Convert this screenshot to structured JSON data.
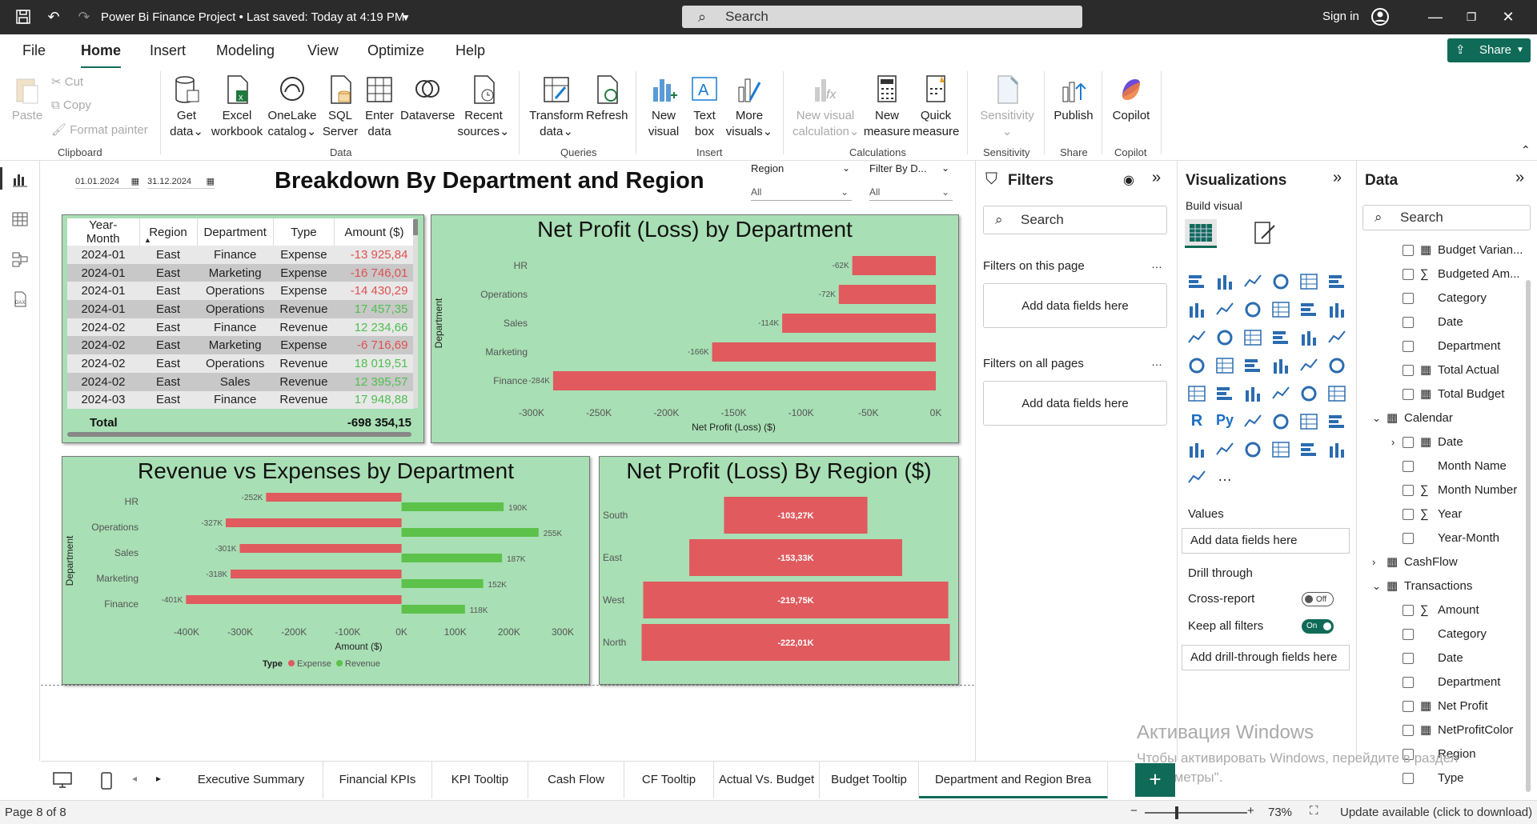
{
  "app": {
    "title": "Power Bi Finance Project • Last saved: Today at 4:19 PM",
    "search_placeholder": "Search",
    "signin": "Sign in",
    "share": "Share"
  },
  "menu": [
    "File",
    "Home",
    "Insert",
    "Modeling",
    "View",
    "Optimize",
    "Help"
  ],
  "ribbon": {
    "clipboard": {
      "paste": "Paste",
      "cut": "Cut",
      "copy": "Copy",
      "format_painter": "Format painter",
      "label": "Clipboard"
    },
    "data": {
      "get_data": [
        "Get",
        "data"
      ],
      "excel": [
        "Excel",
        "workbook"
      ],
      "onelake": [
        "OneLake",
        "catalog"
      ],
      "sql": [
        "SQL",
        "Server"
      ],
      "enter": [
        "Enter",
        "data"
      ],
      "dataverse": "Dataverse",
      "recent": [
        "Recent",
        "sources"
      ],
      "label": "Data"
    },
    "queries": {
      "transform": [
        "Transform",
        "data"
      ],
      "refresh": "Refresh",
      "label": "Queries"
    },
    "insert": {
      "new_visual": [
        "New",
        "visual"
      ],
      "text_box": [
        "Text",
        "box"
      ],
      "more_visuals": [
        "More",
        "visuals"
      ],
      "label": "Insert"
    },
    "calculations": {
      "new_visual_calc": [
        "New visual",
        "calculation"
      ],
      "new_measure": [
        "New",
        "measure"
      ],
      "quick_measure": [
        "Quick",
        "measure"
      ],
      "label": "Calculations"
    },
    "sensitivity": {
      "btn": "Sensitivity",
      "label": "Sensitivity"
    },
    "share": {
      "publish": "Publish",
      "label": "Share"
    },
    "copilot": {
      "btn": "Copilot",
      "label": "Copilot"
    }
  },
  "report": {
    "title": "Breakdown By Department and Region",
    "date_from": "01.01.2024",
    "date_to": "31.12.2024",
    "slicer_region": {
      "label": "Region",
      "value": "All"
    },
    "slicer_dept": {
      "label": "Filter By D...",
      "value": "All"
    },
    "table": {
      "headers": [
        "Year-Month",
        "Region",
        "Department",
        "Type",
        "Amount ($)"
      ],
      "rows": [
        [
          "2024-01",
          "East",
          "Finance",
          "Expense",
          "-13 925,84"
        ],
        [
          "2024-01",
          "East",
          "Marketing",
          "Expense",
          "-16 746,01"
        ],
        [
          "2024-01",
          "East",
          "Operations",
          "Expense",
          "-14 430,29"
        ],
        [
          "2024-01",
          "East",
          "Operations",
          "Revenue",
          "17 457,35"
        ],
        [
          "2024-02",
          "East",
          "Finance",
          "Revenue",
          "12 234,66"
        ],
        [
          "2024-02",
          "East",
          "Marketing",
          "Expense",
          "-6 716,69"
        ],
        [
          "2024-02",
          "East",
          "Operations",
          "Revenue",
          "18 019,51"
        ],
        [
          "2024-02",
          "East",
          "Sales",
          "Revenue",
          "12 395,57"
        ],
        [
          "2024-03",
          "East",
          "Finance",
          "Revenue",
          "17 948,88"
        ]
      ],
      "total_label": "Total",
      "total_value": "-698 354,15"
    }
  },
  "chart_data": [
    {
      "type": "bar",
      "title": "Net Profit (Loss) by Department",
      "ylabel": "Department",
      "xlabel": "Net Profit (Loss) ($)",
      "categories": [
        "HR",
        "Operations",
        "Sales",
        "Marketing",
        "Finance"
      ],
      "values": [
        -62,
        -72,
        -114,
        -166,
        -284
      ],
      "value_labels": [
        "-62K",
        "-72K",
        "-114K",
        "-166K",
        "-284K"
      ],
      "xlim": [
        -300,
        0
      ],
      "ticks": [
        "-300K",
        "-250K",
        "-200K",
        "-150K",
        "-100K",
        "-50K",
        "0K"
      ],
      "color": "#e05a5e"
    },
    {
      "type": "bar",
      "title": "Revenue vs Expenses by Department",
      "ylabel": "Department",
      "xlabel": "Amount ($)",
      "categories": [
        "HR",
        "Operations",
        "Sales",
        "Marketing",
        "Finance"
      ],
      "series": [
        {
          "name": "Expense",
          "values": [
            -252,
            -327,
            -301,
            -318,
            -401
          ],
          "labels": [
            "-252K",
            "-327K",
            "-301K",
            "-318K",
            "-401K"
          ],
          "color": "#e05a5e"
        },
        {
          "name": "Revenue",
          "values": [
            190,
            255,
            187,
            152,
            118
          ],
          "labels": [
            "190K",
            "255K",
            "187K",
            "152K",
            "118K"
          ],
          "color": "#5cc24a"
        }
      ],
      "xlim": [
        -400,
        300
      ],
      "ticks": [
        "-400K",
        "-300K",
        "-200K",
        "-100K",
        "0K",
        "100K",
        "200K",
        "300K"
      ],
      "legend_title": "Type"
    },
    {
      "type": "bar",
      "title": "Net Profit (Loss) By Region ($)",
      "categories": [
        "South",
        "East",
        "West",
        "North"
      ],
      "values": [
        -103.27,
        -153.33,
        -219.75,
        -222.01
      ],
      "value_labels": [
        "-103,27K",
        "-153,33K",
        "-219,75K",
        "-222,01K"
      ],
      "color": "#e05a5e"
    }
  ],
  "filters": {
    "title": "Filters",
    "search": "Search",
    "on_page": "Filters on this page",
    "add_fields": "Add data fields here",
    "on_all": "Filters on all pages"
  },
  "visualizations": {
    "title": "Visualizations",
    "build": "Build visual",
    "values": "Values",
    "add_fields": "Add data fields here",
    "drill": "Drill through",
    "cross": "Cross-report",
    "cross_state": "Off",
    "keep": "Keep all filters",
    "keep_state": "On",
    "add_drill": "Add drill-through fields here"
  },
  "data_pane": {
    "title": "Data",
    "search": "Search",
    "fields": [
      {
        "label": "Budget Varian...",
        "icon": "calc",
        "indent": 1
      },
      {
        "label": "Budgeted Am...",
        "icon": "sigma",
        "indent": 1
      },
      {
        "label": "Category",
        "icon": "",
        "indent": 1
      },
      {
        "label": "Date",
        "icon": "",
        "indent": 1
      },
      {
        "label": "Department",
        "icon": "",
        "indent": 1
      },
      {
        "label": "Total Actual",
        "icon": "calc",
        "indent": 1
      },
      {
        "label": "Total Budget",
        "icon": "calc",
        "indent": 1
      },
      {
        "label": "Calendar",
        "icon": "table",
        "indent": 0,
        "expand": "v"
      },
      {
        "label": "Date",
        "icon": "calc",
        "indent": 1,
        "expand": ">"
      },
      {
        "label": "Month Name",
        "icon": "",
        "indent": 1
      },
      {
        "label": "Month Number",
        "icon": "sigma",
        "indent": 1
      },
      {
        "label": "Year",
        "icon": "sigma",
        "indent": 1
      },
      {
        "label": "Year-Month",
        "icon": "",
        "indent": 1
      },
      {
        "label": "CashFlow",
        "icon": "table",
        "indent": 0,
        "expand": ">"
      },
      {
        "label": "Transactions",
        "icon": "table",
        "indent": 0,
        "expand": "v"
      },
      {
        "label": "Amount",
        "icon": "sigma",
        "indent": 1
      },
      {
        "label": "Category",
        "icon": "",
        "indent": 1
      },
      {
        "label": "Date",
        "icon": "",
        "indent": 1
      },
      {
        "label": "Department",
        "icon": "",
        "indent": 1
      },
      {
        "label": "Net Profit",
        "icon": "calc",
        "indent": 1
      },
      {
        "label": "NetProfitColor",
        "icon": "calc",
        "indent": 1
      },
      {
        "label": "Region",
        "icon": "",
        "indent": 1
      },
      {
        "label": "Type",
        "icon": "",
        "indent": 1
      }
    ]
  },
  "tabs": [
    "Executive Summary",
    "Financial KPIs",
    "KPI Tooltip",
    "Cash Flow",
    "CF Tooltip",
    "Actual Vs. Budget",
    "Budget Tooltip",
    "Department and Region Brea"
  ],
  "status": {
    "page": "Page 8 of 8",
    "zoom": "73%",
    "update": "Update available (click to download)"
  },
  "watermark": {
    "line1": "Активация Windows",
    "line2": "Чтобы активировать Windows, перейдите в раздел \"Параметры\"."
  }
}
